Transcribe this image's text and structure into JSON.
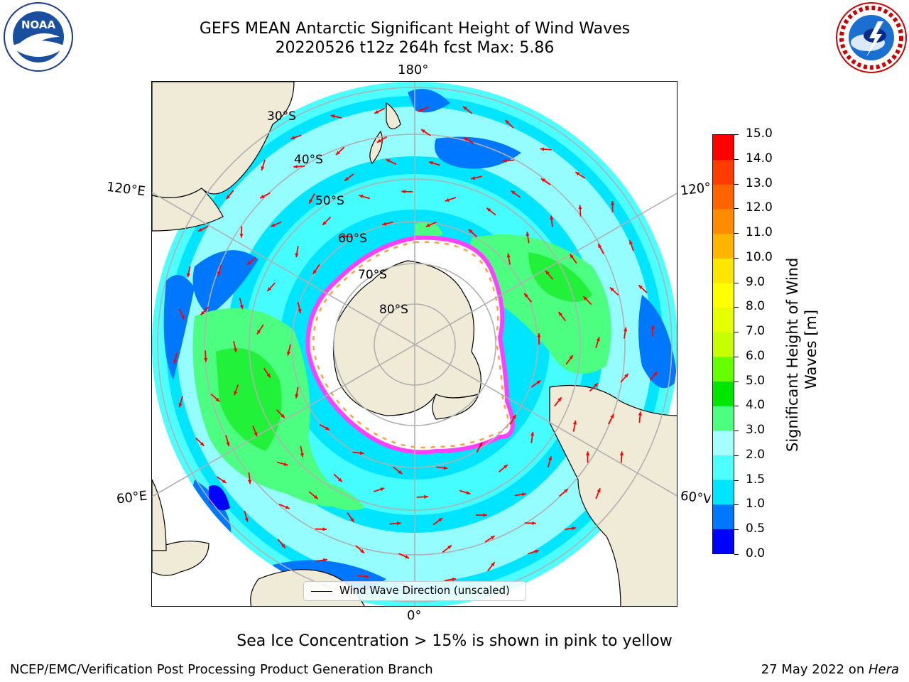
{
  "title": {
    "line1": "GEFS MEAN Antarctic Significant Height of Wind Waves",
    "line2": "20220526 t12z 264h fcst   Max: 5.86"
  },
  "logos": {
    "left": {
      "name": "noaa-logo",
      "text": "NOAA"
    },
    "right": {
      "name": "nws-logo",
      "text": "NATIONAL WEATHER SERVICE"
    }
  },
  "map": {
    "projection": "south-polar-stereographic",
    "longitude_labels": {
      "top": "180°",
      "bottom": "0°",
      "left_upper": "120°E",
      "left_lower": "60°E",
      "right_upper": "120°",
      "right_lower": "60°V"
    },
    "latitude_labels": [
      "30°S",
      "40°S",
      "50°S",
      "60°S",
      "70°S",
      "80°S"
    ],
    "colors": {
      "land": "#efebd7",
      "ice_interior": "#ffffff",
      "grid": "#b0b0b0",
      "arrow": "#ff0000",
      "sea_ice_edge": [
        "#ff40ff",
        "#ffa040",
        "#ffff00"
      ]
    }
  },
  "legend": {
    "label": "Wind Wave Direction (unscaled)"
  },
  "colorbar": {
    "title_line1": "Significant Height of Wind",
    "title_line2": "Waves [m]",
    "ticks": [
      "0.0",
      "0.5",
      "1.0",
      "1.5",
      "2.0",
      "3.0",
      "4.0",
      "5.0",
      "6.0",
      "7.0",
      "8.0",
      "9.0",
      "10.0",
      "11.0",
      "12.0",
      "13.0",
      "14.0",
      "15.0"
    ],
    "colors": [
      "#0000ff",
      "#0077ff",
      "#00e5ff",
      "#4dffff",
      "#a6ffff",
      "#4dff80",
      "#00e600",
      "#66ff00",
      "#c8ff00",
      "#e6ff00",
      "#ffff00",
      "#ffe600",
      "#ffb400",
      "#ff8c00",
      "#ff6400",
      "#ff3c00",
      "#ff0000"
    ]
  },
  "note": "Sea Ice Concentration > 15% is shown in pink to yellow",
  "footer": {
    "left": "NCEP/EMC/Verification Post Processing Product Generation Branch",
    "right_date": "27 May 2022 on ",
    "right_host": "Hera"
  }
}
